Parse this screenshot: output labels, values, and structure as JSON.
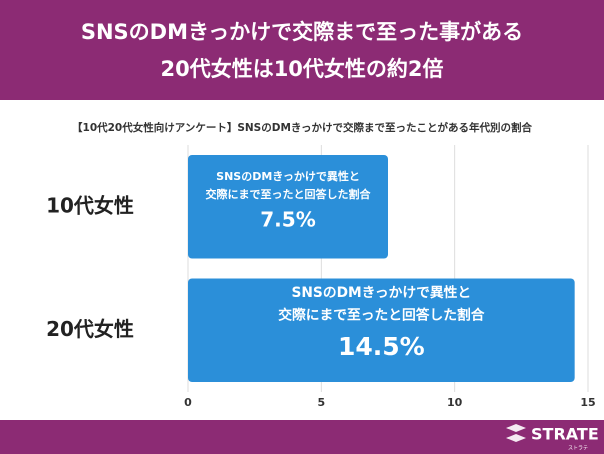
{
  "chart_data": {
    "type": "bar",
    "orientation": "horizontal",
    "title": [
      "SNSのDMきっかけで交際まで至った事がある",
      "20代女性は10代女性の約2倍"
    ],
    "subtitle": "【10代20代女性向けアンケート】SNSのDMきっかけで交際まで至ったことがある年代別の割合",
    "categories": [
      "10代女性",
      "20代女性"
    ],
    "values": [
      7.5,
      14.5
    ],
    "value_labels": [
      "7.5%",
      "14.5%"
    ],
    "bar_text": [
      "SNSのDMきっかけで異性と",
      "交際にまで至ったと回答した割合"
    ],
    "color": "#2b8fd9",
    "xlim": [
      0,
      15
    ],
    "xticks": [
      0,
      5,
      10,
      15
    ],
    "grid": true
  },
  "footer": {
    "brand": "STRATE",
    "brand_kana": "ストラテ"
  }
}
